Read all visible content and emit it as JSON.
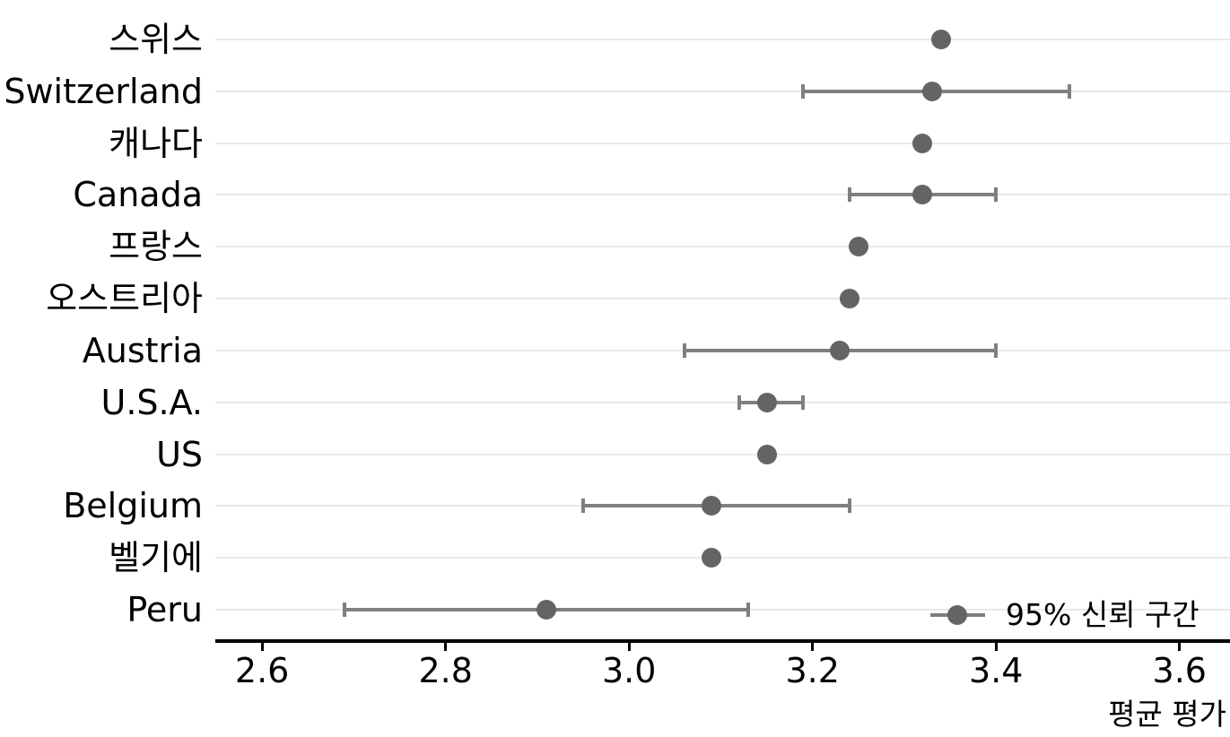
{
  "chart_data": {
    "type": "scatter",
    "subtype": "pointrange-dot-plot",
    "title": "",
    "xlabel": "평균 평가",
    "ylabel": "",
    "xlim": [
      2.549,
      3.655
    ],
    "xticks": [
      2.6,
      2.8,
      3.0,
      3.2,
      3.4,
      3.6
    ],
    "xtick_labels": [
      "2.6",
      "2.8",
      "3.0",
      "3.2",
      "3.4",
      "3.6"
    ],
    "grid": "horizontal-only",
    "legend": {
      "label": "95% 신뢰 구간",
      "position": "inside-bottom-right"
    },
    "points": [
      {
        "label": "스위스",
        "mean": 3.34,
        "ci_low": null,
        "ci_high": null
      },
      {
        "label": "Switzerland",
        "mean": 3.33,
        "ci_low": 3.19,
        "ci_high": 3.48
      },
      {
        "label": "캐나다",
        "mean": 3.32,
        "ci_low": null,
        "ci_high": null
      },
      {
        "label": "Canada",
        "mean": 3.32,
        "ci_low": 3.24,
        "ci_high": 3.4
      },
      {
        "label": "프랑스",
        "mean": 3.25,
        "ci_low": null,
        "ci_high": null
      },
      {
        "label": "오스트리아",
        "mean": 3.24,
        "ci_low": null,
        "ci_high": null
      },
      {
        "label": "Austria",
        "mean": 3.23,
        "ci_low": 3.06,
        "ci_high": 3.4
      },
      {
        "label": "U.S.A.",
        "mean": 3.15,
        "ci_low": 3.12,
        "ci_high": 3.19
      },
      {
        "label": "US",
        "mean": 3.15,
        "ci_low": null,
        "ci_high": null
      },
      {
        "label": "Belgium",
        "mean": 3.09,
        "ci_low": 2.95,
        "ci_high": 3.24
      },
      {
        "label": "벨기에",
        "mean": 3.09,
        "ci_low": null,
        "ci_high": null
      },
      {
        "label": "Peru",
        "mean": 2.91,
        "ci_low": 2.69,
        "ci_high": 3.13
      }
    ],
    "colors": {
      "point": "#646464",
      "interval": "#7f7f7f",
      "gridline": "#e9e9e9",
      "axis": "#000000",
      "background": "#ffffff"
    }
  }
}
